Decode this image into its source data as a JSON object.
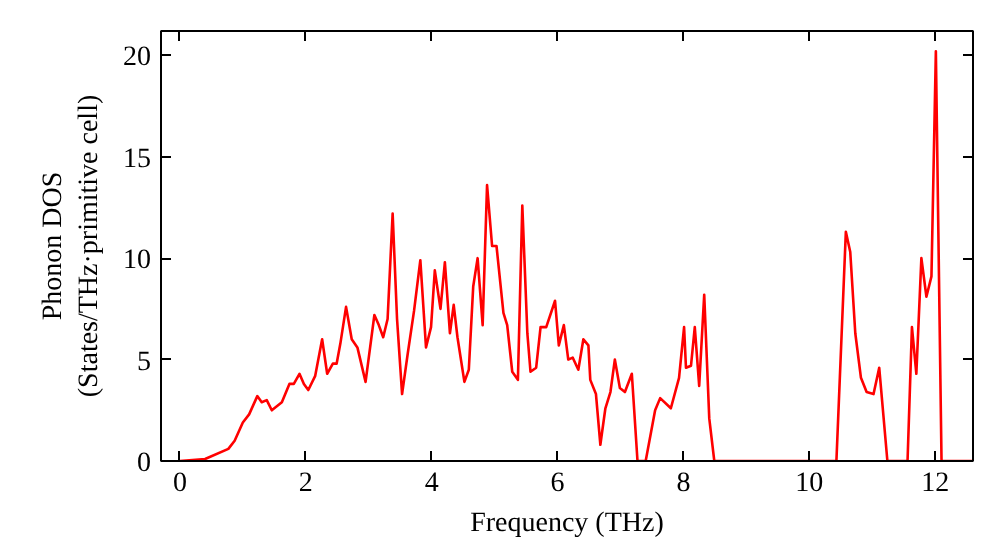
{
  "chart_data": {
    "type": "line",
    "xlabel": "Frequency (THz)",
    "ylabel": "Phonon DOS\n(States/THz·primitive cell)",
    "xlim": [
      -0.3,
      12.6
    ],
    "ylim": [
      0,
      21.2
    ],
    "xticks": [
      0,
      2,
      4,
      6,
      8,
      10,
      12
    ],
    "yticks": [
      0,
      5,
      10,
      15,
      20
    ],
    "grid": false,
    "line_style": "solid",
    "marker": "none",
    "series": [
      {
        "color": "#ff0000",
        "x": [
          0,
          0.4,
          0.77,
          0.87,
          1.0,
          1.1,
          1.23,
          1.3,
          1.38,
          1.46,
          1.62,
          1.74,
          1.81,
          1.9,
          1.97,
          2.04,
          2.15,
          2.26,
          2.34,
          2.43,
          2.49,
          2.55,
          2.64,
          2.73,
          2.82,
          2.95,
          3.09,
          3.16,
          3.23,
          3.3,
          3.38,
          3.45,
          3.53,
          3.62,
          3.72,
          3.82,
          3.91,
          3.99,
          4.05,
          4.14,
          4.21,
          4.29,
          4.35,
          4.41,
          4.52,
          4.59,
          4.66,
          4.73,
          4.81,
          4.88,
          4.96,
          5.03,
          5.14,
          5.2,
          5.28,
          5.37,
          5.44,
          5.52,
          5.57,
          5.66,
          5.73,
          5.82,
          5.96,
          6.02,
          6.1,
          6.17,
          6.24,
          6.33,
          6.41,
          6.49,
          6.52,
          6.61,
          6.68,
          6.76,
          6.84,
          6.91,
          6.99,
          7.07,
          7.18,
          7.27,
          7.4,
          7.55,
          7.63,
          7.8,
          7.93,
          8.01,
          8.04,
          8.12,
          8.18,
          8.25,
          8.33,
          8.41,
          8.49,
          10.43,
          10.58,
          10.65,
          10.73,
          10.82,
          10.91,
          11.02,
          11.11,
          11.24,
          11.56,
          11.63,
          11.7,
          11.78,
          11.86,
          11.94,
          12.01,
          12.1,
          12.6
        ],
        "values": [
          0,
          0.1,
          0.6,
          1.0,
          1.9,
          2.3,
          3.2,
          2.9,
          3.0,
          2.5,
          2.9,
          3.8,
          3.8,
          4.3,
          3.8,
          3.5,
          4.2,
          6.0,
          4.3,
          4.8,
          4.8,
          5.8,
          7.6,
          6.0,
          5.6,
          3.9,
          7.2,
          6.7,
          6.1,
          7.0,
          12.2,
          7.0,
          3.3,
          5.3,
          7.4,
          9.9,
          5.6,
          6.6,
          9.4,
          7.5,
          9.8,
          6.3,
          7.7,
          6.1,
          3.9,
          4.5,
          8.6,
          10.0,
          6.7,
          13.6,
          10.6,
          10.6,
          7.3,
          6.7,
          4.4,
          4.0,
          12.6,
          6.3,
          4.4,
          4.6,
          6.6,
          6.6,
          7.9,
          5.7,
          6.7,
          5.0,
          5.1,
          4.5,
          6.0,
          5.7,
          4.0,
          3.3,
          0.8,
          2.6,
          3.4,
          5.0,
          3.6,
          3.4,
          4.3,
          0,
          0,
          2.5,
          3.1,
          2.6,
          4.1,
          6.6,
          4.6,
          4.7,
          6.6,
          3.7,
          8.2,
          2.1,
          0,
          0,
          11.3,
          10.3,
          6.3,
          4.1,
          3.4,
          3.3,
          4.6,
          0,
          0,
          6.6,
          4.3,
          10.0,
          8.1,
          9.1,
          20.2,
          0,
          0
        ]
      }
    ]
  }
}
